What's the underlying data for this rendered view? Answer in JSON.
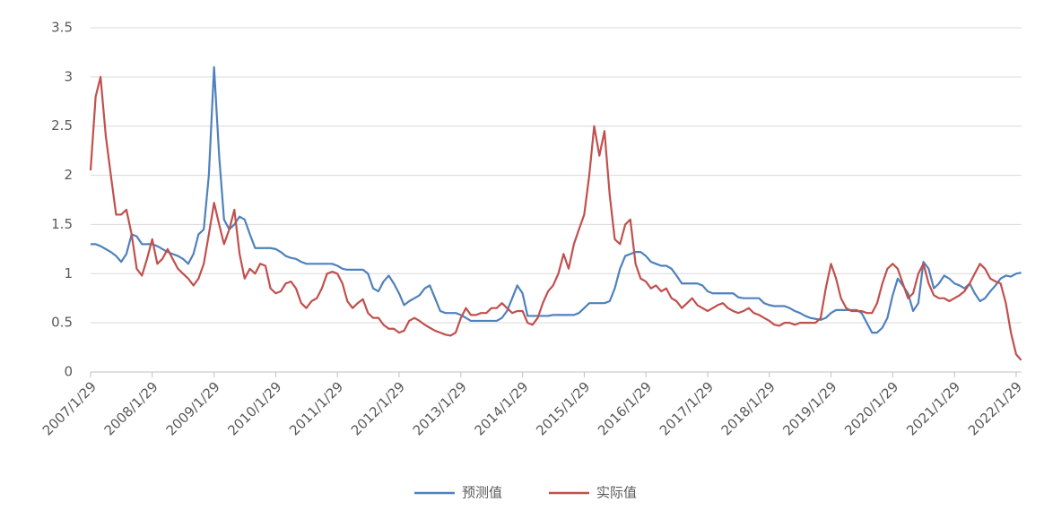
{
  "chart_data": {
    "type": "line",
    "x": [
      "2007/1/29",
      "2007/2/28",
      "2007/3/29",
      "2007/4/29",
      "2007/5/29",
      "2007/6/29",
      "2007/7/29",
      "2007/8/29",
      "2007/9/29",
      "2007/10/29",
      "2007/11/29",
      "2007/12/29",
      "2008/1/29",
      "2008/2/28",
      "2008/3/29",
      "2008/4/29",
      "2008/5/29",
      "2008/6/29",
      "2008/7/29",
      "2008/8/29",
      "2008/9/29",
      "2008/10/29",
      "2008/11/29",
      "2008/12/29",
      "2009/1/29",
      "2009/2/28",
      "2009/3/29",
      "2009/4/29",
      "2009/5/29",
      "2009/6/29",
      "2009/7/29",
      "2009/8/29",
      "2009/9/29",
      "2009/10/29",
      "2009/11/29",
      "2009/12/29",
      "2010/1/29",
      "2010/2/28",
      "2010/3/29",
      "2010/4/29",
      "2010/5/29",
      "2010/6/29",
      "2010/7/29",
      "2010/8/29",
      "2010/9/29",
      "2010/10/29",
      "2010/11/29",
      "2010/12/29",
      "2011/1/29",
      "2011/2/28",
      "2011/3/29",
      "2011/4/29",
      "2011/5/29",
      "2011/6/29",
      "2011/7/29",
      "2011/8/29",
      "2011/9/29",
      "2011/10/29",
      "2011/11/29",
      "2011/12/29",
      "2012/1/29",
      "2012/2/28",
      "2012/3/29",
      "2012/4/29",
      "2012/5/29",
      "2012/6/29",
      "2012/7/29",
      "2012/8/29",
      "2012/9/29",
      "2012/10/29",
      "2012/11/29",
      "2012/12/29",
      "2013/1/29",
      "2013/2/28",
      "2013/3/29",
      "2013/4/29",
      "2013/5/29",
      "2013/6/29",
      "2013/7/29",
      "2013/8/29",
      "2013/9/29",
      "2013/10/29",
      "2013/11/29",
      "2013/12/29",
      "2014/1/29",
      "2014/2/28",
      "2014/3/29",
      "2014/4/29",
      "2014/5/29",
      "2014/6/29",
      "2014/7/29",
      "2014/8/29",
      "2014/9/29",
      "2014/10/29",
      "2014/11/29",
      "2014/12/29",
      "2015/1/29",
      "2015/2/28",
      "2015/3/29",
      "2015/4/29",
      "2015/5/29",
      "2015/6/29",
      "2015/7/29",
      "2015/8/29",
      "2015/9/29",
      "2015/10/29",
      "2015/11/29",
      "2015/12/29",
      "2016/1/29",
      "2016/2/28",
      "2016/3/29",
      "2016/4/29",
      "2016/5/29",
      "2016/6/29",
      "2016/7/29",
      "2016/8/29",
      "2016/9/29",
      "2016/10/29",
      "2016/11/29",
      "2016/12/29",
      "2017/1/29",
      "2017/2/28",
      "2017/3/29",
      "2017/4/29",
      "2017/5/29",
      "2017/6/29",
      "2017/7/29",
      "2017/8/29",
      "2017/9/29",
      "2017/10/29",
      "2017/11/29",
      "2017/12/29",
      "2018/1/29",
      "2018/2/28",
      "2018/3/29",
      "2018/4/29",
      "2018/5/29",
      "2018/6/29",
      "2018/7/29",
      "2018/8/29",
      "2018/9/29",
      "2018/10/29",
      "2018/11/29",
      "2018/12/29",
      "2019/1/29",
      "2019/2/28",
      "2019/3/29",
      "2019/4/29",
      "2019/5/29",
      "2019/6/29",
      "2019/7/29",
      "2019/8/29",
      "2019/9/29",
      "2019/10/29",
      "2019/11/29",
      "2019/12/29",
      "2020/1/29",
      "2020/2/28",
      "2020/3/29",
      "2020/4/29",
      "2020/5/29",
      "2020/6/29",
      "2020/7/29",
      "2020/8/29",
      "2020/9/29",
      "2020/10/29",
      "2020/11/29",
      "2020/12/29",
      "2021/1/29",
      "2021/2/28",
      "2021/3/29",
      "2021/4/29",
      "2021/5/29",
      "2021/6/29",
      "2021/7/29",
      "2021/8/29",
      "2021/9/29",
      "2021/10/29",
      "2021/11/29",
      "2021/12/29",
      "2022/1/29",
      "2022/2/28"
    ],
    "series": [
      {
        "name": "预测值",
        "color": "#4f81bd",
        "values": [
          1.3,
          1.3,
          1.28,
          1.25,
          1.22,
          1.18,
          1.12,
          1.2,
          1.4,
          1.38,
          1.3,
          1.3,
          1.3,
          1.28,
          1.25,
          1.22,
          1.2,
          1.18,
          1.15,
          1.1,
          1.2,
          1.4,
          1.45,
          2.0,
          3.1,
          2.2,
          1.55,
          1.45,
          1.5,
          1.58,
          1.55,
          1.4,
          1.26,
          1.26,
          1.26,
          1.26,
          1.25,
          1.22,
          1.18,
          1.16,
          1.15,
          1.12,
          1.1,
          1.1,
          1.1,
          1.1,
          1.1,
          1.1,
          1.08,
          1.05,
          1.04,
          1.04,
          1.04,
          1.04,
          1.0,
          0.85,
          0.82,
          0.92,
          0.98,
          0.9,
          0.8,
          0.68,
          0.72,
          0.75,
          0.78,
          0.85,
          0.88,
          0.75,
          0.62,
          0.6,
          0.6,
          0.6,
          0.58,
          0.55,
          0.52,
          0.52,
          0.52,
          0.52,
          0.52,
          0.52,
          0.55,
          0.62,
          0.75,
          0.88,
          0.8,
          0.57,
          0.57,
          0.57,
          0.57,
          0.57,
          0.58,
          0.58,
          0.58,
          0.58,
          0.58,
          0.6,
          0.65,
          0.7,
          0.7,
          0.7,
          0.7,
          0.72,
          0.85,
          1.05,
          1.18,
          1.2,
          1.22,
          1.22,
          1.18,
          1.12,
          1.1,
          1.08,
          1.08,
          1.05,
          0.98,
          0.9,
          0.9,
          0.9,
          0.9,
          0.88,
          0.82,
          0.8,
          0.8,
          0.8,
          0.8,
          0.8,
          0.76,
          0.75,
          0.75,
          0.75,
          0.75,
          0.7,
          0.68,
          0.67,
          0.67,
          0.67,
          0.65,
          0.62,
          0.6,
          0.57,
          0.55,
          0.54,
          0.53,
          0.55,
          0.6,
          0.63,
          0.63,
          0.63,
          0.63,
          0.63,
          0.6,
          0.5,
          0.4,
          0.4,
          0.45,
          0.55,
          0.78,
          0.95,
          0.88,
          0.8,
          0.62,
          0.7,
          1.12,
          1.05,
          0.85,
          0.9,
          0.98,
          0.95,
          0.9,
          0.88,
          0.85,
          0.9,
          0.8,
          0.72,
          0.75,
          0.82,
          0.88,
          0.95,
          0.98,
          0.97,
          1.0,
          1.01
        ]
      },
      {
        "name": "实际值",
        "color": "#c0504d",
        "values": [
          2.05,
          2.8,
          3.0,
          2.4,
          2.0,
          1.6,
          1.6,
          1.65,
          1.4,
          1.05,
          0.98,
          1.15,
          1.35,
          1.1,
          1.15,
          1.25,
          1.15,
          1.05,
          1.0,
          0.95,
          0.88,
          0.95,
          1.1,
          1.4,
          1.72,
          1.5,
          1.3,
          1.45,
          1.65,
          1.2,
          0.95,
          1.05,
          1.0,
          1.1,
          1.08,
          0.85,
          0.8,
          0.82,
          0.9,
          0.92,
          0.85,
          0.7,
          0.65,
          0.72,
          0.75,
          0.85,
          1.0,
          1.02,
          1.0,
          0.9,
          0.72,
          0.65,
          0.7,
          0.74,
          0.6,
          0.55,
          0.55,
          0.48,
          0.44,
          0.44,
          0.4,
          0.42,
          0.52,
          0.55,
          0.52,
          0.48,
          0.45,
          0.42,
          0.4,
          0.38,
          0.37,
          0.4,
          0.55,
          0.65,
          0.58,
          0.58,
          0.6,
          0.6,
          0.65,
          0.65,
          0.7,
          0.65,
          0.6,
          0.62,
          0.62,
          0.5,
          0.48,
          0.55,
          0.7,
          0.82,
          0.88,
          1.0,
          1.2,
          1.05,
          1.3,
          1.45,
          1.6,
          2.0,
          2.5,
          2.2,
          2.45,
          1.8,
          1.35,
          1.3,
          1.5,
          1.55,
          1.1,
          0.95,
          0.92,
          0.85,
          0.88,
          0.82,
          0.85,
          0.75,
          0.72,
          0.65,
          0.7,
          0.75,
          0.68,
          0.65,
          0.62,
          0.65,
          0.68,
          0.7,
          0.65,
          0.62,
          0.6,
          0.62,
          0.65,
          0.6,
          0.58,
          0.55,
          0.52,
          0.48,
          0.47,
          0.5,
          0.5,
          0.48,
          0.5,
          0.5,
          0.5,
          0.5,
          0.55,
          0.85,
          1.1,
          0.95,
          0.75,
          0.65,
          0.62,
          0.62,
          0.62,
          0.6,
          0.6,
          0.7,
          0.9,
          1.05,
          1.1,
          1.05,
          0.9,
          0.75,
          0.8,
          1.0,
          1.1,
          0.9,
          0.78,
          0.75,
          0.75,
          0.72,
          0.75,
          0.78,
          0.82,
          0.9,
          1.0,
          1.1,
          1.05,
          0.95,
          0.92,
          0.9,
          0.7,
          0.4,
          0.18,
          0.12
        ]
      }
    ],
    "xlim": [
      "2007/1/29",
      "2022/2/28"
    ],
    "xticks": [
      "2007/1/29",
      "2008/1/29",
      "2009/1/29",
      "2010/1/29",
      "2011/1/29",
      "2012/1/29",
      "2013/1/29",
      "2014/1/29",
      "2015/1/29",
      "2016/1/29",
      "2017/1/29",
      "2018/1/29",
      "2019/1/29",
      "2020/1/29",
      "2021/1/29",
      "2022/1/29"
    ],
    "ylim": [
      0,
      3.5
    ],
    "yticks": [
      0,
      0.5,
      1,
      1.5,
      2,
      2.5,
      3,
      3.5
    ],
    "grid": true,
    "legend": "bottom"
  }
}
